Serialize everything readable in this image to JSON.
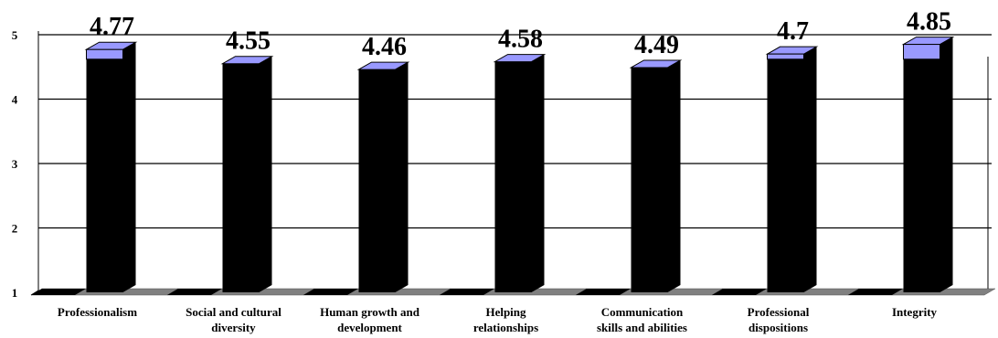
{
  "colors": {
    "bar_front": "#000000",
    "bar_side": "#000000",
    "bar_top": "#9999ff",
    "bar_cap": "#9999ff",
    "floor": "#808080",
    "gridline": "#000000",
    "background": "#ffffff"
  },
  "chart_data": {
    "type": "bar",
    "title": "",
    "xlabel": "",
    "ylabel": "",
    "ylim": [
      1,
      5
    ],
    "yticks": [
      "1",
      "2",
      "3",
      "4",
      "5"
    ],
    "grid": true,
    "legend": "none",
    "style": "3d-column",
    "categories": [
      [
        "Professionalism"
      ],
      [
        "Social and cultural",
        "diversity"
      ],
      [
        "Human growth and",
        "development"
      ],
      [
        "Helping",
        "relationships"
      ],
      [
        "Communication",
        "skills and abilities"
      ],
      [
        "Professional",
        "dispositions"
      ],
      [
        "Integrity"
      ]
    ],
    "values": [
      4.77,
      4.55,
      4.46,
      4.58,
      4.49,
      4.7,
      4.85
    ],
    "value_labels": [
      "4.77",
      "4.55",
      "4.46",
      "4.58",
      "4.49",
      "4.7",
      "4.85"
    ]
  }
}
